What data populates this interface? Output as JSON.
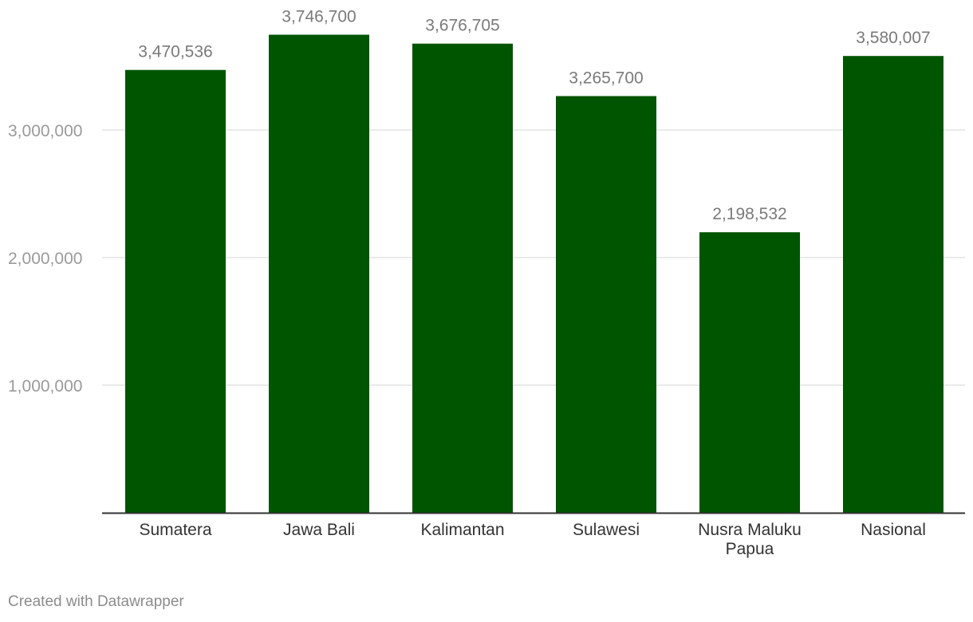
{
  "chart_data": {
    "type": "bar",
    "categories": [
      "Sumatera",
      "Jawa Bali",
      "Kalimantan",
      "Sulawesi",
      "Nusra Maluku Papua",
      "Nasional"
    ],
    "category_lines": [
      [
        "Sumatera"
      ],
      [
        "Jawa Bali"
      ],
      [
        "Kalimantan"
      ],
      [
        "Sulawesi"
      ],
      [
        "Nusra Maluku",
        "Papua"
      ],
      [
        "Nasional"
      ]
    ],
    "values": [
      3470536,
      3746700,
      3676705,
      3265700,
      2198532,
      3580007
    ],
    "value_labels": [
      "3,470,536",
      "3,746,700",
      "3,676,705",
      "3,265,700",
      "2,198,532",
      "3,580,007"
    ],
    "yticks": [
      1000000,
      2000000,
      3000000
    ],
    "ytick_labels": [
      "1,000,000",
      "2,000,000",
      "3,000,000"
    ],
    "ylim": [
      0,
      3746700
    ],
    "grid": true,
    "bar_color": "#005500",
    "title": "",
    "xlabel": "",
    "ylabel": ""
  },
  "footer": {
    "credit": "Created with Datawrapper"
  }
}
